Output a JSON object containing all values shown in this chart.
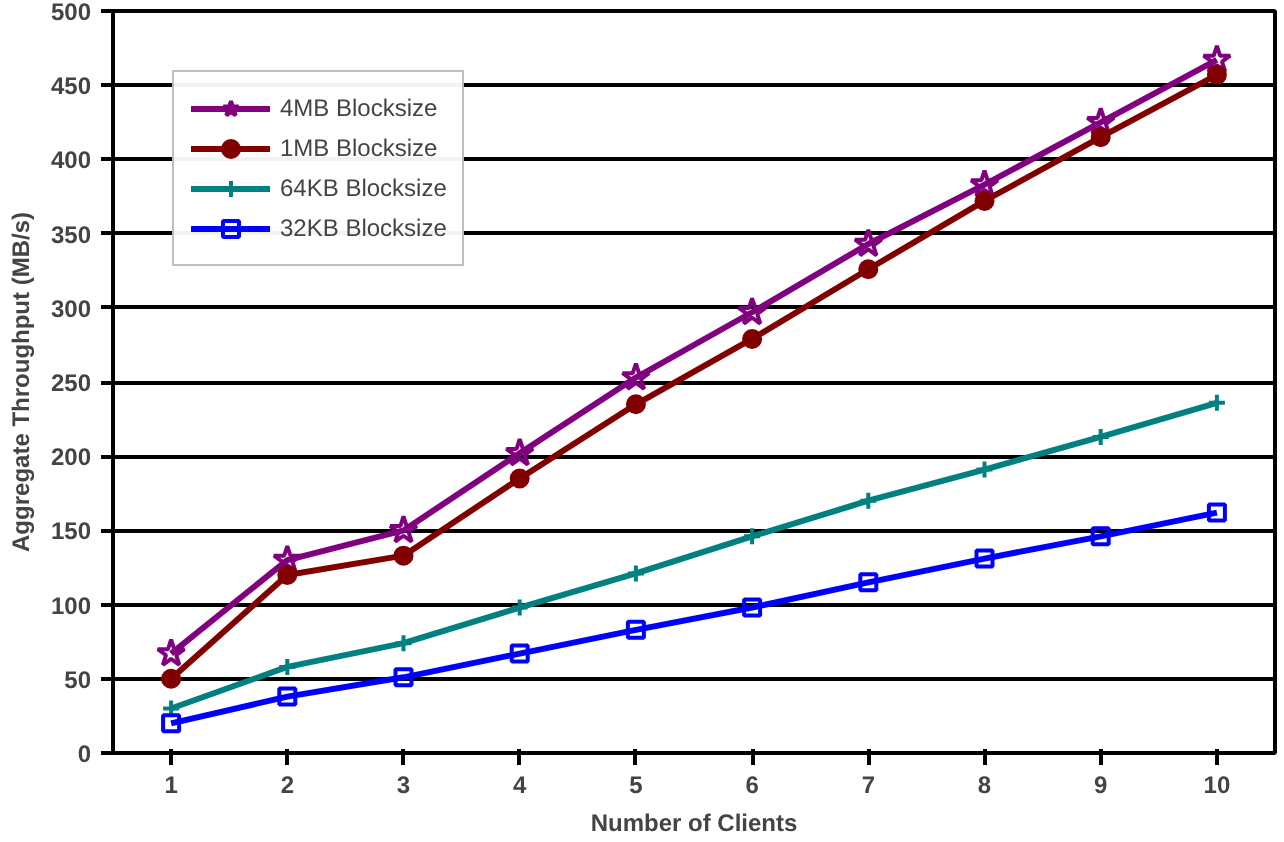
{
  "chart_data": {
    "type": "line",
    "xlabel": "Number of Clients",
    "ylabel": "Aggregate Throughput (MB/s)",
    "categories": [
      "1",
      "2",
      "3",
      "4",
      "5",
      "6",
      "7",
      "8",
      "9",
      "10"
    ],
    "ylim": [
      0,
      500
    ],
    "yticks": [
      0,
      50,
      100,
      150,
      200,
      250,
      300,
      350,
      400,
      450,
      500
    ],
    "grid": "y",
    "legend": "top left",
    "line_style": "solid",
    "series": [
      {
        "name": "4MB Blocksize",
        "color": "#800080",
        "marker": "star",
        "values": [
          67,
          130,
          150,
          202,
          253,
          297,
          343,
          383,
          425,
          467
        ]
      },
      {
        "name": "1MB Blocksize",
        "color": "#800000",
        "marker": "circle",
        "values": [
          50,
          120,
          133,
          185,
          235,
          279,
          326,
          372,
          415,
          457
        ]
      },
      {
        "name": "64KB Blocksize",
        "color": "#008080",
        "marker": "cross",
        "values": [
          30,
          58,
          74,
          98,
          121,
          146,
          170,
          191,
          213,
          236
        ]
      },
      {
        "name": "32KB Blocksize",
        "color": "#0000ff",
        "marker": "square",
        "values": [
          20,
          38,
          51,
          67,
          83,
          98,
          115,
          131,
          146,
          162
        ]
      }
    ]
  }
}
